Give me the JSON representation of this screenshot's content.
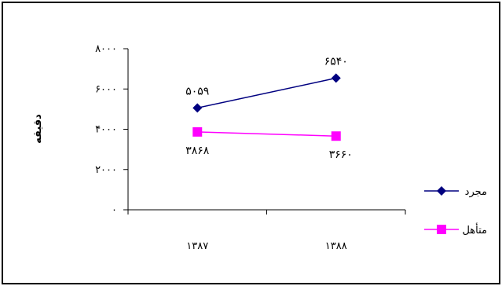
{
  "chart_data": {
    "type": "line",
    "title": "",
    "xlabel": "",
    "ylabel": "دقیقه",
    "categories": [
      "۱۳۸۷",
      "۱۳۸۸"
    ],
    "yticks": [
      "۰",
      "۲۰۰۰",
      "۴۰۰۰",
      "۶۰۰۰",
      "۸۰۰۰"
    ],
    "ylim": [
      0,
      8000
    ],
    "grid": false,
    "legend_position": "right",
    "series": [
      {
        "name": "مجرد",
        "values": [
          5059,
          6540
        ],
        "labels": [
          "۵۰۵۹",
          "۶۵۴۰"
        ],
        "color": "#000080",
        "marker": "diamond"
      },
      {
        "name": "متأهل",
        "values": [
          3868,
          3660
        ],
        "labels": [
          "۳۸۶۸",
          "۳۶۶۰"
        ],
        "color": "#FF00FF",
        "marker": "square"
      }
    ]
  }
}
